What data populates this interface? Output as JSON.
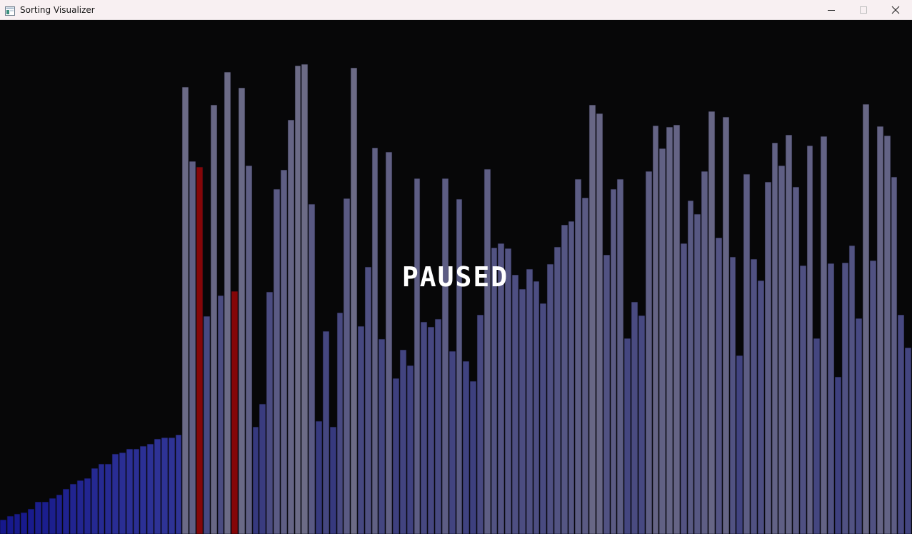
{
  "window": {
    "title": "Sorting Visualizer",
    "icons": {
      "app": "app-window-icon",
      "minimize": "minimize-icon",
      "maximize": "maximize-icon",
      "close": "close-icon"
    }
  },
  "overlay": {
    "status_text": "PAUSED"
  },
  "colors": {
    "background": "#070708",
    "sorted_low": "#12138a",
    "sorted_high": "#2f3496",
    "unsorted_low": "#262a7c",
    "unsorted_high": "#6c6b86",
    "compare": "#850608"
  },
  "chart_data": {
    "type": "bar",
    "values": [
      20,
      25,
      28,
      30,
      35,
      45,
      45,
      50,
      55,
      63,
      70,
      75,
      78,
      92,
      98,
      98,
      112,
      114,
      119,
      119,
      123,
      126,
      133,
      135,
      135,
      139,
      627,
      523,
      515,
      305,
      602,
      334,
      648,
      340,
      626,
      517,
      150,
      182,
      339,
      484,
      511,
      581,
      657,
      659,
      463,
      158,
      284,
      150,
      310,
      471,
      654,
      291,
      375,
      542,
      273,
      536,
      218,
      258,
      236,
      499,
      297,
      290,
      301,
      499,
      256,
      470,
      242,
      214,
      307,
      512,
      402,
      408,
      401,
      364,
      343,
      372,
      354,
      323,
      379,
      403,
      434,
      439,
      498,
      472,
      602,
      590,
      392,
      484,
      498,
      274,
      325,
      306,
      509,
      573,
      541,
      571,
      574,
      408,
      468,
      449,
      509,
      593,
      416,
      585,
      389,
      250,
      505,
      386,
      355,
      494,
      549,
      517,
      560,
      487,
      377,
      545,
      274,
      558,
      380,
      220,
      381,
      405,
      302,
      603,
      384,
      572,
      559,
      501,
      307,
      261
    ],
    "highlighted_indices": [
      28,
      33
    ]
  }
}
